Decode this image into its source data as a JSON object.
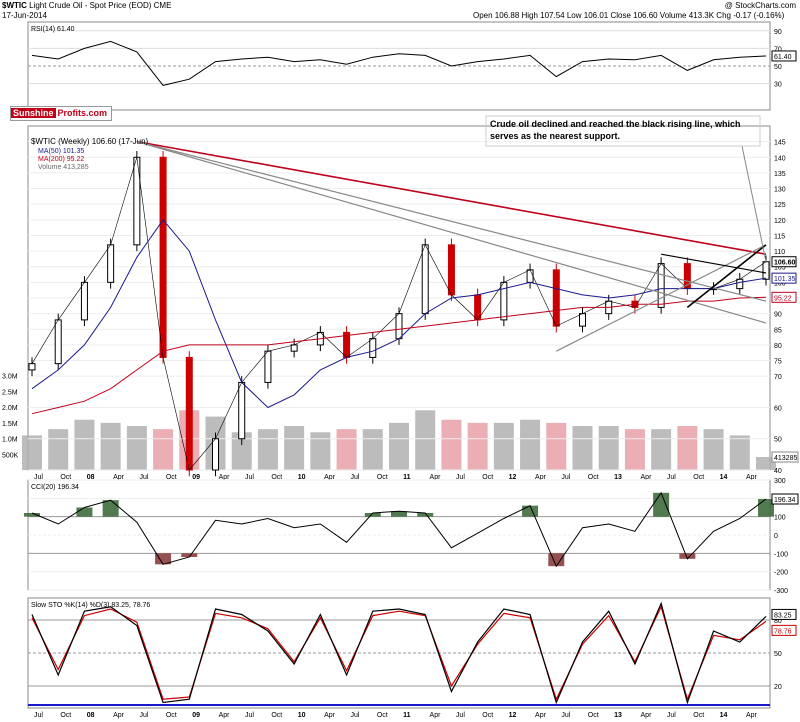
{
  "header": {
    "symbol": "$WTIC",
    "name": "Light Crude Oil - Spot Price (EOD)",
    "exchange": "CME",
    "date": "17-Jun-2014",
    "credit": "@ StockCharts.com",
    "quote": "Open 106.88  High 107.54  Low 106.01  Close 106.60  Volume 413.3K  Chg -0.17 (-0.16%)"
  },
  "brand": {
    "part1": "Sunshine",
    "part2": "Profits.com"
  },
  "annotation": "Crude oil declined and reached the black rising line, which serves as the nearest support.",
  "colors": {
    "price_up": "#000000",
    "price_down": "#cc0000",
    "ma50": "#1a1a8c",
    "ma200": "#c0001a",
    "vol_up": "#b0b0b0",
    "vol_down": "#e8a0a8",
    "fill_green": "#3e6b3e",
    "fill_red": "#8a3e3e",
    "resistance": "#c0001a",
    "trend": "#888888"
  },
  "chart_data": [
    {
      "type": "line",
      "panel": "rsi",
      "legend": "RSI(14) 61.40",
      "ylim": [
        0,
        100
      ],
      "y_ticks": [
        30,
        50,
        70,
        90
      ],
      "last_label": "61.40",
      "x": [
        "Jul 07",
        "Oct 07",
        "08",
        "Apr 08",
        "Jul 08",
        "Oct 08",
        "09",
        "Apr 09",
        "Jul 09",
        "Oct 09",
        "10",
        "Apr 10",
        "Jul 10",
        "Oct 10",
        "11",
        "Apr 11",
        "Jul 11",
        "Oct 11",
        "12",
        "Apr 12",
        "Jul 12",
        "Oct 12",
        "13",
        "Apr 13",
        "Jul 13",
        "Oct 13",
        "14",
        "Apr 14",
        "Jun 14"
      ],
      "values": [
        62,
        58,
        70,
        78,
        66,
        28,
        35,
        55,
        58,
        60,
        55,
        57,
        52,
        60,
        64,
        62,
        50,
        55,
        58,
        62,
        38,
        55,
        58,
        57,
        62,
        45,
        57,
        60,
        61.4
      ]
    },
    {
      "type": "line",
      "panel": "price",
      "title": "$WTIC (Weekly) 106.60 (17-Jun)",
      "legend": [
        "MA(50) 101.35",
        "MA(200) 95.22",
        "Volume 413,285"
      ],
      "ylim": [
        40,
        150
      ],
      "y_ticks": [
        40,
        50,
        60,
        70,
        75,
        80,
        85,
        90,
        95,
        100,
        105,
        110,
        115,
        120,
        125,
        130,
        135,
        140,
        145
      ],
      "last_labels": [
        "106.60",
        "101.35",
        "95.22"
      ],
      "x": [
        "Jul 07",
        "Oct 07",
        "08",
        "Apr 08",
        "Jul 08",
        "Oct 08",
        "09",
        "Apr 09",
        "Jul 09",
        "Oct 09",
        "10",
        "Apr 10",
        "Jul 10",
        "Oct 10",
        "11",
        "Apr 11",
        "Jul 11",
        "Oct 11",
        "12",
        "Apr 12",
        "Jul 12",
        "Oct 12",
        "13",
        "Apr 13",
        "Jul 13",
        "Oct 13",
        "14",
        "Apr 14",
        "Jun 14"
      ],
      "series": [
        {
          "name": "Close",
          "values": [
            74,
            88,
            100,
            112,
            140,
            76,
            40,
            50,
            68,
            78,
            80,
            84,
            76,
            82,
            90,
            112,
            96,
            88,
            100,
            104,
            86,
            90,
            94,
            92,
            106,
            98,
            98,
            101,
            106.6
          ]
        },
        {
          "name": "MA(50)",
          "values": [
            66,
            72,
            80,
            92,
            108,
            120,
            110,
            88,
            68,
            60,
            64,
            72,
            76,
            78,
            82,
            90,
            95,
            96,
            98,
            100,
            98,
            96,
            95,
            96,
            98,
            98,
            98,
            100,
            101.35
          ]
        },
        {
          "name": "MA(200)",
          "values": [
            58,
            60,
            62,
            66,
            72,
            78,
            80,
            80,
            80,
            80,
            81,
            82,
            83,
            84,
            85,
            86,
            87,
            88,
            89,
            90,
            91,
            92,
            92,
            93,
            93,
            94,
            94,
            95,
            95.22
          ]
        }
      ]
    },
    {
      "type": "bar",
      "panel": "volume",
      "ylim": [
        0,
        3500000
      ],
      "y_ticks": [
        "500K",
        "1.0M",
        "1.5M",
        "2.0M",
        "2.5M",
        "3.0M"
      ],
      "last_label": "413285",
      "x": [
        "Jul 07",
        "Oct 07",
        "08",
        "Apr 08",
        "Jul 08",
        "Oct 08",
        "09",
        "Apr 09",
        "Jul 09",
        "Oct 09",
        "10",
        "Apr 10",
        "Jul 10",
        "Oct 10",
        "11",
        "Apr 11",
        "Jul 11",
        "Oct 11",
        "12",
        "Apr 12",
        "Jul 12",
        "Oct 12",
        "13",
        "Apr 13",
        "Jul 13",
        "Oct 13",
        "14",
        "Apr 14",
        "Jun 14"
      ],
      "values": [
        1100000,
        1300000,
        1600000,
        1500000,
        1400000,
        1300000,
        1900000,
        1700000,
        1200000,
        1300000,
        1400000,
        1200000,
        1300000,
        1300000,
        1500000,
        1900000,
        1600000,
        1500000,
        1500000,
        1600000,
        1500000,
        1400000,
        1400000,
        1300000,
        1300000,
        1400000,
        1300000,
        1100000,
        413285
      ]
    },
    {
      "type": "line",
      "panel": "cci",
      "legend": "CCI(20) 196.34",
      "ylim": [
        -300,
        300
      ],
      "y_ticks": [
        -300,
        -200,
        -100,
        0,
        100,
        200,
        300
      ],
      "last_label": "196.34",
      "x": [
        "Jul 07",
        "Oct 07",
        "08",
        "Apr 08",
        "Jul 08",
        "Oct 08",
        "09",
        "Apr 09",
        "Jul 09",
        "Oct 09",
        "10",
        "Apr 10",
        "Jul 10",
        "Oct 10",
        "11",
        "Apr 11",
        "Jul 11",
        "Oct 11",
        "12",
        "Apr 12",
        "Jul 12",
        "Oct 12",
        "13",
        "Apr 13",
        "Jul 13",
        "Oct 13",
        "14",
        "Apr 14",
        "Jun 14"
      ],
      "values": [
        120,
        60,
        150,
        190,
        70,
        -160,
        -120,
        80,
        60,
        90,
        40,
        60,
        -40,
        120,
        130,
        120,
        -70,
        10,
        90,
        160,
        -170,
        40,
        60,
        20,
        230,
        -130,
        20,
        90,
        196.34
      ]
    },
    {
      "type": "line",
      "panel": "stochastic",
      "legend": "Slow STO %K(14) %D(3) 83.25, 78.76",
      "ylim": [
        0,
        100
      ],
      "y_ticks": [
        20,
        50,
        80
      ],
      "last_labels": [
        "83.25",
        "78.76"
      ],
      "x": [
        "Jul 07",
        "Oct 07",
        "08",
        "Apr 08",
        "Jul 08",
        "Oct 08",
        "09",
        "Apr 09",
        "Jul 09",
        "Oct 09",
        "10",
        "Apr 10",
        "Jul 10",
        "Oct 10",
        "11",
        "Apr 11",
        "Jul 11",
        "Oct 11",
        "12",
        "Apr 12",
        "Jul 12",
        "Oct 12",
        "13",
        "Apr 13",
        "Jul 13",
        "Oct 13",
        "14",
        "Apr 14",
        "Jun 14"
      ],
      "series": [
        {
          "name": "%K",
          "values": [
            85,
            30,
            88,
            92,
            75,
            5,
            8,
            90,
            85,
            70,
            40,
            85,
            30,
            88,
            90,
            85,
            15,
            60,
            90,
            85,
            5,
            60,
            88,
            40,
            95,
            5,
            70,
            60,
            83.25
          ]
        },
        {
          "name": "%D",
          "values": [
            82,
            35,
            84,
            90,
            78,
            8,
            10,
            86,
            82,
            72,
            42,
            82,
            34,
            84,
            88,
            84,
            20,
            58,
            86,
            82,
            8,
            58,
            84,
            42,
            92,
            8,
            66,
            62,
            78.76
          ]
        }
      ]
    }
  ],
  "x_axis": [
    "Jul",
    "Oct",
    "08",
    "Apr",
    "Jul",
    "Oct",
    "09",
    "Apr",
    "Jul",
    "Oct",
    "10",
    "Apr",
    "Jul",
    "Oct",
    "11",
    "Apr",
    "Jul",
    "Oct",
    "12",
    "Apr",
    "Jul",
    "Oct",
    "13",
    "Apr",
    "Jul",
    "Oct",
    "14",
    "Apr"
  ]
}
